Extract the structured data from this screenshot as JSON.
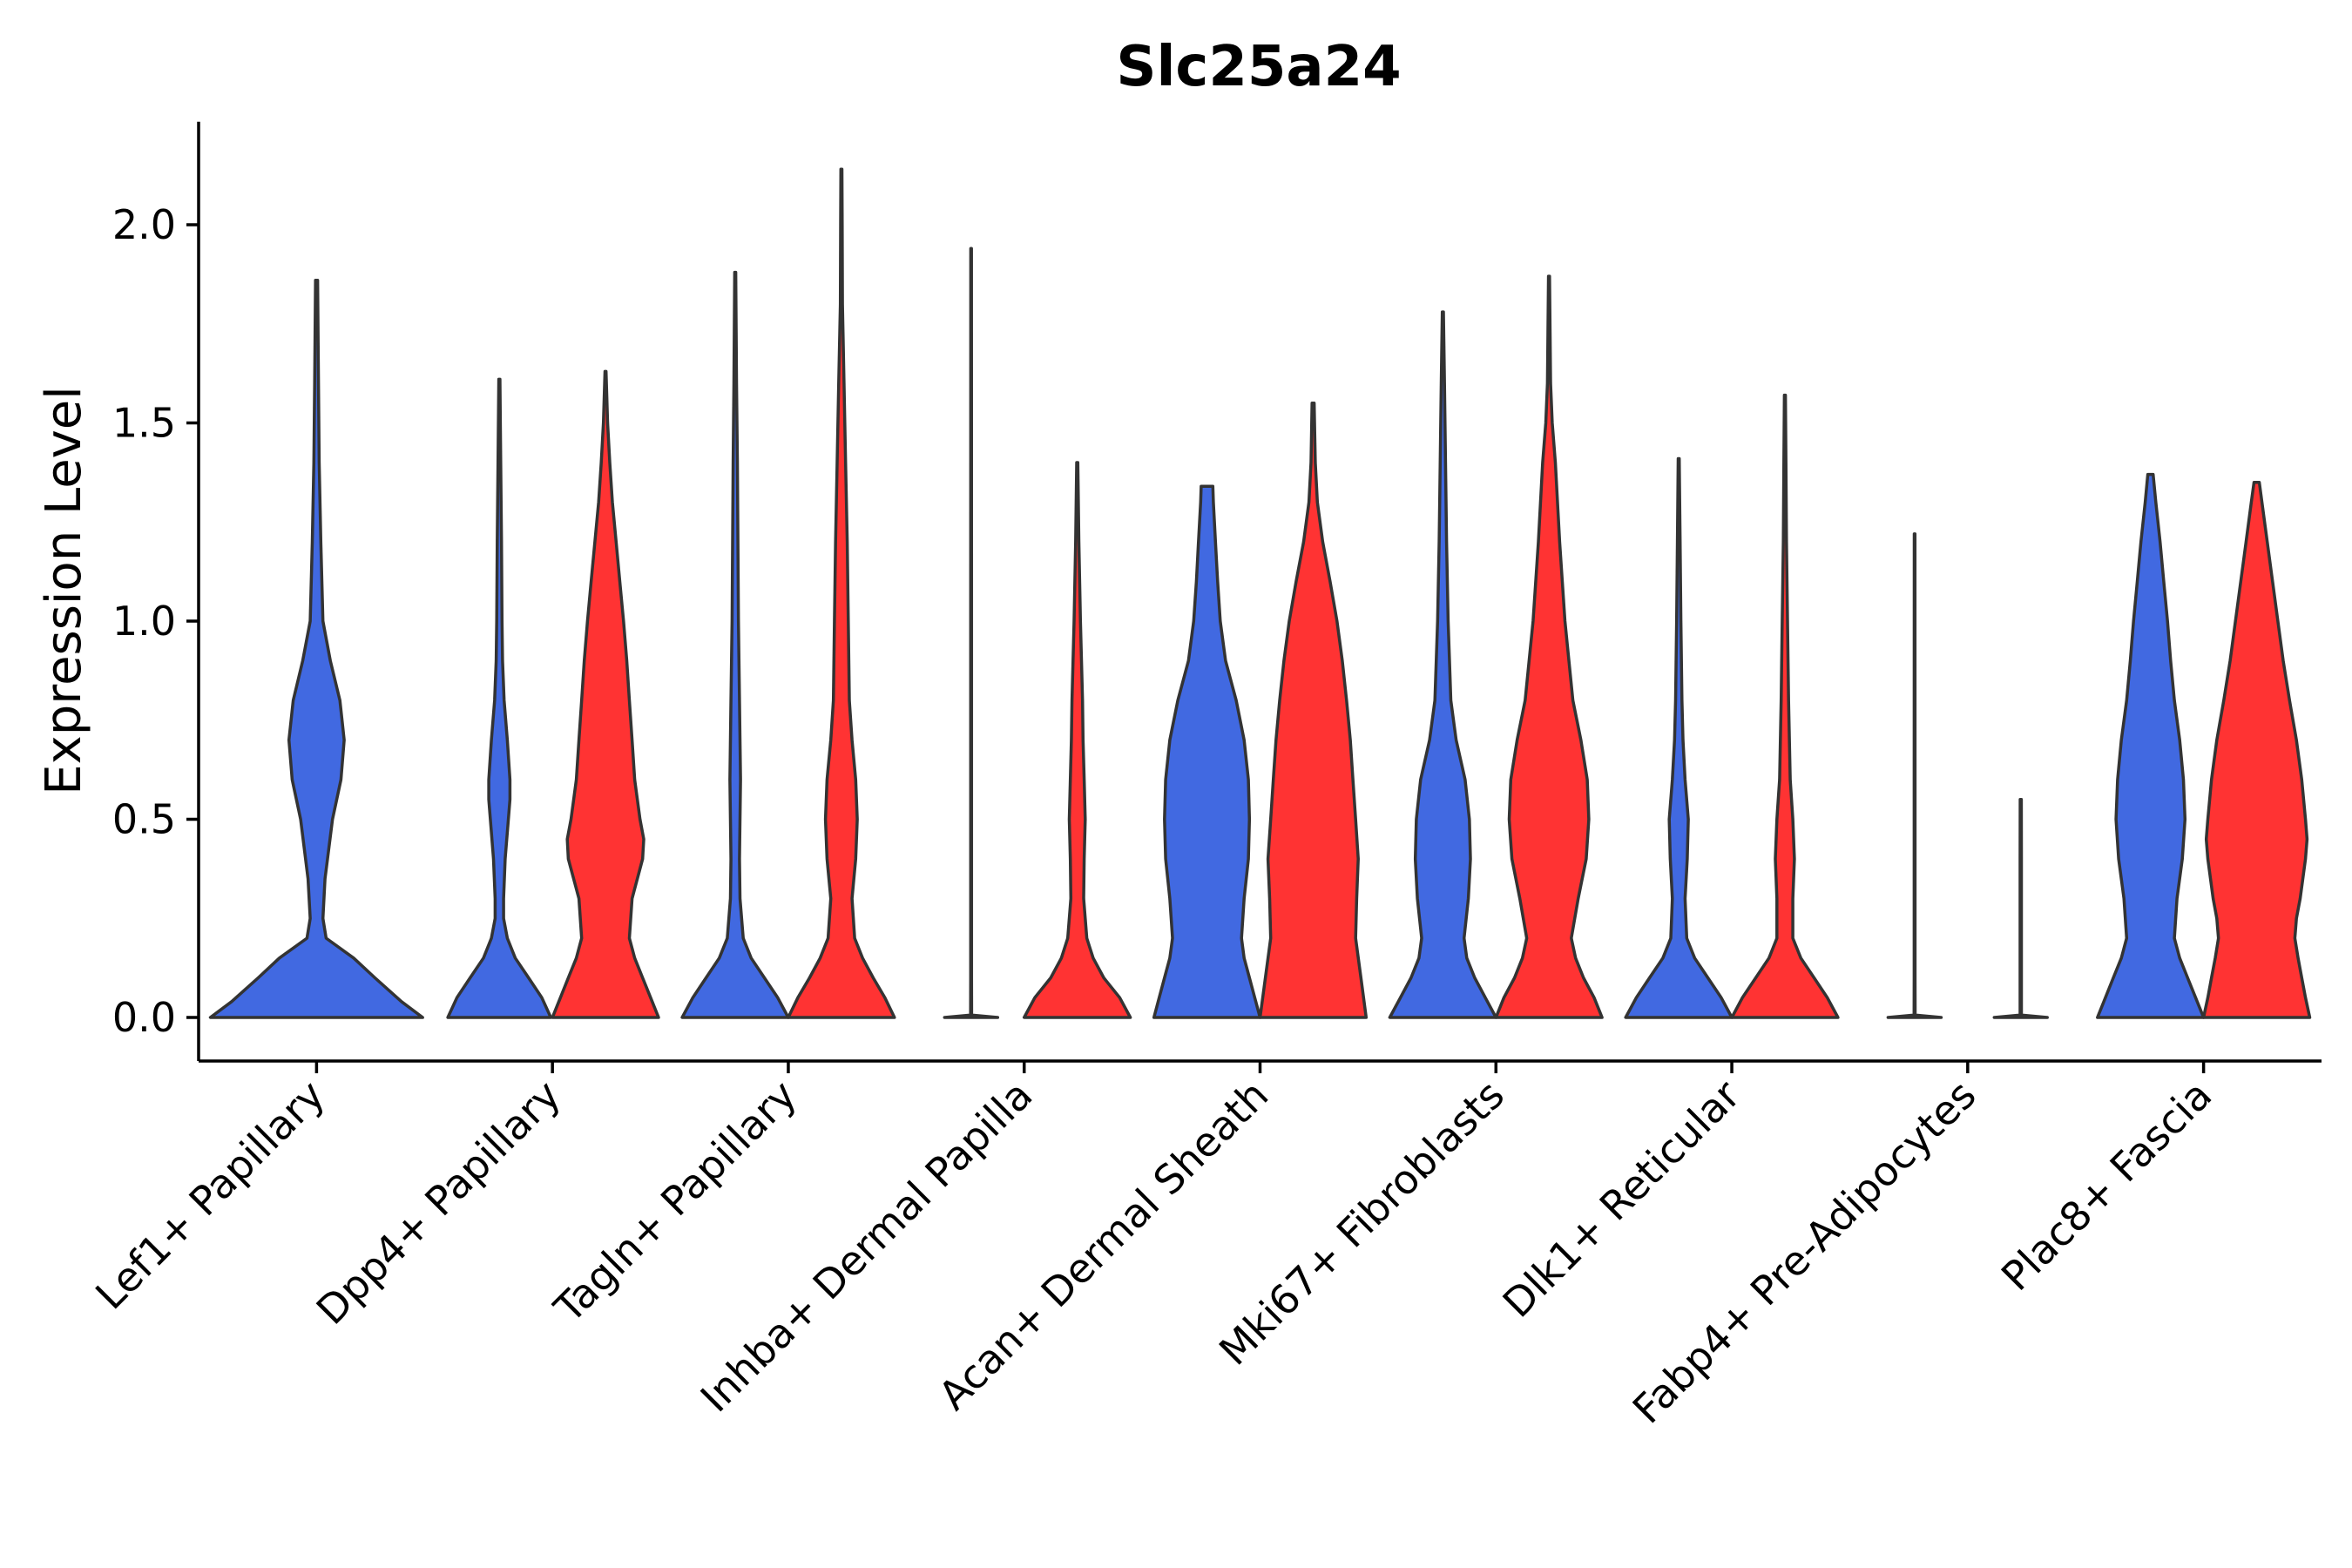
{
  "chart_data": {
    "type": "violin",
    "title": "Slc25a24",
    "xlabel": "",
    "ylabel": "Expression Level",
    "ylim": [
      -0.11,
      2.26
    ],
    "yticks": [
      0.0,
      0.5,
      1.0,
      1.5,
      2.0
    ],
    "ytick_labels": [
      "0.0",
      "0.5",
      "1.0",
      "1.5",
      "2.0"
    ],
    "grid": false,
    "colors": {
      "group1": "#4169E1",
      "group2": "#FF3333",
      "outline": "#333333"
    },
    "series": [
      {
        "name": "group1",
        "color": "#4169E1"
      },
      {
        "name": "group2",
        "color": "#FF3333"
      }
    ],
    "categories": [
      "Lef1+ Papillary",
      "Dpp4+ Papillary",
      "Tagln+ Papillary",
      "Inhba+ Dermal Papilla",
      "Acan+ Dermal Sheath",
      "Mki67+ Fibroblasts",
      "Dlk1+ Reticular",
      "Fabp4+ Pre-Adipocytes",
      "Plac8+ Fascia"
    ],
    "violins": [
      {
        "category": "Lef1+ Papillary",
        "series": "group1",
        "position": "full",
        "max": 1.86,
        "profile": [
          [
            0,
            1.0
          ],
          [
            0.04,
            0.8
          ],
          [
            0.1,
            0.55
          ],
          [
            0.15,
            0.35
          ],
          [
            0.2,
            0.09
          ],
          [
            0.25,
            0.06
          ],
          [
            0.35,
            0.08
          ],
          [
            0.5,
            0.15
          ],
          [
            0.6,
            0.23
          ],
          [
            0.7,
            0.26
          ],
          [
            0.8,
            0.22
          ],
          [
            0.9,
            0.13
          ],
          [
            1.0,
            0.06
          ],
          [
            1.2,
            0.04
          ],
          [
            1.4,
            0.025
          ],
          [
            1.6,
            0.018
          ],
          [
            1.86,
            0.01
          ]
        ]
      },
      {
        "category": "Dpp4+ Papillary",
        "series": "group1",
        "position": "left",
        "max": 1.61,
        "profile": [
          [
            0,
            0.97
          ],
          [
            0.05,
            0.8
          ],
          [
            0.1,
            0.55
          ],
          [
            0.15,
            0.3
          ],
          [
            0.2,
            0.15
          ],
          [
            0.25,
            0.08
          ],
          [
            0.3,
            0.08
          ],
          [
            0.4,
            0.11
          ],
          [
            0.5,
            0.17
          ],
          [
            0.55,
            0.2
          ],
          [
            0.6,
            0.2
          ],
          [
            0.7,
            0.15
          ],
          [
            0.8,
            0.09
          ],
          [
            0.9,
            0.06
          ],
          [
            1.0,
            0.05
          ],
          [
            1.2,
            0.04
          ],
          [
            1.4,
            0.025
          ],
          [
            1.61,
            0.01
          ]
        ]
      },
      {
        "category": "Dpp4+ Papillary",
        "series": "group2",
        "position": "right",
        "max": 1.63,
        "profile": [
          [
            0,
            1.0
          ],
          [
            0.05,
            0.85
          ],
          [
            0.1,
            0.7
          ],
          [
            0.15,
            0.55
          ],
          [
            0.2,
            0.45
          ],
          [
            0.3,
            0.5
          ],
          [
            0.4,
            0.7
          ],
          [
            0.45,
            0.72
          ],
          [
            0.5,
            0.65
          ],
          [
            0.6,
            0.55
          ],
          [
            0.7,
            0.5
          ],
          [
            0.8,
            0.45
          ],
          [
            0.9,
            0.4
          ],
          [
            1.0,
            0.34
          ],
          [
            1.1,
            0.27
          ],
          [
            1.2,
            0.2
          ],
          [
            1.3,
            0.13
          ],
          [
            1.4,
            0.08
          ],
          [
            1.5,
            0.04
          ],
          [
            1.63,
            0.01
          ]
        ]
      },
      {
        "category": "Tagln+ Papillary",
        "series": "group1",
        "position": "left",
        "max": 1.88,
        "profile": [
          [
            0,
            1.0
          ],
          [
            0.05,
            0.8
          ],
          [
            0.1,
            0.55
          ],
          [
            0.15,
            0.3
          ],
          [
            0.2,
            0.15
          ],
          [
            0.3,
            0.09
          ],
          [
            0.4,
            0.08
          ],
          [
            0.5,
            0.09
          ],
          [
            0.6,
            0.1
          ],
          [
            0.7,
            0.09
          ],
          [
            0.8,
            0.08
          ],
          [
            1.0,
            0.06
          ],
          [
            1.2,
            0.05
          ],
          [
            1.4,
            0.04
          ],
          [
            1.6,
            0.025
          ],
          [
            1.88,
            0.01
          ]
        ]
      },
      {
        "category": "Tagln+ Papillary",
        "series": "group2",
        "position": "right",
        "max": 2.14,
        "profile": [
          [
            0,
            1.0
          ],
          [
            0.05,
            0.82
          ],
          [
            0.1,
            0.6
          ],
          [
            0.15,
            0.4
          ],
          [
            0.2,
            0.25
          ],
          [
            0.3,
            0.2
          ],
          [
            0.4,
            0.27
          ],
          [
            0.5,
            0.3
          ],
          [
            0.6,
            0.27
          ],
          [
            0.7,
            0.2
          ],
          [
            0.8,
            0.15
          ],
          [
            1.0,
            0.13
          ],
          [
            1.2,
            0.11
          ],
          [
            1.4,
            0.08
          ],
          [
            1.6,
            0.05
          ],
          [
            1.8,
            0.02
          ],
          [
            2.0,
            0.015
          ],
          [
            2.14,
            0.01
          ]
        ]
      },
      {
        "category": "Inhba+ Dermal Papilla",
        "series": "group1",
        "position": "left",
        "max": 1.94,
        "profile": [
          [
            0,
            0.5
          ],
          [
            0.006,
            0.01
          ],
          [
            0.1,
            0.008
          ],
          [
            1.0,
            0.008
          ],
          [
            1.94,
            0.006
          ]
        ]
      },
      {
        "category": "Inhba+ Dermal Papilla",
        "series": "group2",
        "position": "right",
        "max": 1.4,
        "profile": [
          [
            0,
            1.0
          ],
          [
            0.05,
            0.8
          ],
          [
            0.1,
            0.5
          ],
          [
            0.15,
            0.3
          ],
          [
            0.2,
            0.18
          ],
          [
            0.3,
            0.12
          ],
          [
            0.4,
            0.13
          ],
          [
            0.5,
            0.15
          ],
          [
            0.6,
            0.13
          ],
          [
            0.7,
            0.11
          ],
          [
            0.8,
            0.1
          ],
          [
            0.9,
            0.08
          ],
          [
            1.0,
            0.06
          ],
          [
            1.2,
            0.03
          ],
          [
            1.4,
            0.01
          ]
        ]
      },
      {
        "category": "Acan+ Dermal Sheath",
        "series": "group1",
        "position": "left",
        "max": 1.34,
        "profile": [
          [
            0,
            1.0
          ],
          [
            0.05,
            0.9
          ],
          [
            0.1,
            0.8
          ],
          [
            0.15,
            0.7
          ],
          [
            0.2,
            0.65
          ],
          [
            0.3,
            0.7
          ],
          [
            0.4,
            0.78
          ],
          [
            0.5,
            0.8
          ],
          [
            0.6,
            0.78
          ],
          [
            0.7,
            0.7
          ],
          [
            0.8,
            0.55
          ],
          [
            0.9,
            0.35
          ],
          [
            1.0,
            0.25
          ],
          [
            1.1,
            0.2
          ],
          [
            1.2,
            0.16
          ],
          [
            1.3,
            0.12
          ],
          [
            1.34,
            0.11
          ]
        ]
      },
      {
        "category": "Acan+ Dermal Sheath",
        "series": "group2",
        "position": "right",
        "max": 1.55,
        "profile": [
          [
            0,
            1.0
          ],
          [
            0.1,
            0.9
          ],
          [
            0.2,
            0.8
          ],
          [
            0.3,
            0.82
          ],
          [
            0.4,
            0.85
          ],
          [
            0.5,
            0.8
          ],
          [
            0.6,
            0.75
          ],
          [
            0.7,
            0.7
          ],
          [
            0.8,
            0.63
          ],
          [
            0.9,
            0.55
          ],
          [
            1.0,
            0.45
          ],
          [
            1.1,
            0.32
          ],
          [
            1.2,
            0.18
          ],
          [
            1.3,
            0.08
          ],
          [
            1.4,
            0.04
          ],
          [
            1.55,
            0.02
          ]
        ]
      },
      {
        "category": "Mki67+ Fibroblasts",
        "series": "group1",
        "position": "left",
        "max": 1.78,
        "profile": [
          [
            0,
            1.0
          ],
          [
            0.05,
            0.8
          ],
          [
            0.1,
            0.6
          ],
          [
            0.15,
            0.45
          ],
          [
            0.2,
            0.4
          ],
          [
            0.3,
            0.48
          ],
          [
            0.4,
            0.52
          ],
          [
            0.5,
            0.5
          ],
          [
            0.6,
            0.42
          ],
          [
            0.7,
            0.25
          ],
          [
            0.8,
            0.15
          ],
          [
            1.0,
            0.1
          ],
          [
            1.2,
            0.07
          ],
          [
            1.4,
            0.05
          ],
          [
            1.6,
            0.03
          ],
          [
            1.78,
            0.01
          ]
        ]
      },
      {
        "category": "Mki67+ Fibroblasts",
        "series": "group2",
        "position": "right",
        "max": 1.87,
        "profile": [
          [
            0,
            1.0
          ],
          [
            0.05,
            0.85
          ],
          [
            0.1,
            0.65
          ],
          [
            0.15,
            0.5
          ],
          [
            0.2,
            0.42
          ],
          [
            0.3,
            0.55
          ],
          [
            0.4,
            0.7
          ],
          [
            0.5,
            0.75
          ],
          [
            0.6,
            0.72
          ],
          [
            0.7,
            0.6
          ],
          [
            0.8,
            0.45
          ],
          [
            1.0,
            0.3
          ],
          [
            1.2,
            0.2
          ],
          [
            1.4,
            0.12
          ],
          [
            1.5,
            0.06
          ],
          [
            1.6,
            0.03
          ],
          [
            1.87,
            0.01
          ]
        ]
      },
      {
        "category": "Dlk1+ Reticular",
        "series": "group1",
        "position": "left",
        "max": 1.41,
        "profile": [
          [
            0,
            1.0
          ],
          [
            0.05,
            0.8
          ],
          [
            0.1,
            0.55
          ],
          [
            0.15,
            0.3
          ],
          [
            0.2,
            0.15
          ],
          [
            0.3,
            0.12
          ],
          [
            0.4,
            0.16
          ],
          [
            0.5,
            0.18
          ],
          [
            0.6,
            0.12
          ],
          [
            0.7,
            0.08
          ],
          [
            0.8,
            0.06
          ],
          [
            1.0,
            0.04
          ],
          [
            1.2,
            0.025
          ],
          [
            1.41,
            0.01
          ]
        ]
      },
      {
        "category": "Dlk1+ Reticular",
        "series": "group2",
        "position": "right",
        "max": 1.57,
        "profile": [
          [
            0,
            1.0
          ],
          [
            0.05,
            0.8
          ],
          [
            0.1,
            0.55
          ],
          [
            0.15,
            0.3
          ],
          [
            0.2,
            0.15
          ],
          [
            0.3,
            0.15
          ],
          [
            0.4,
            0.18
          ],
          [
            0.5,
            0.15
          ],
          [
            0.6,
            0.1
          ],
          [
            0.8,
            0.07
          ],
          [
            1.0,
            0.05
          ],
          [
            1.2,
            0.03
          ],
          [
            1.4,
            0.02
          ],
          [
            1.57,
            0.01
          ]
        ]
      },
      {
        "category": "Fabp4+ Pre-Adipocytes",
        "series": "group1",
        "position": "left",
        "max": 1.22,
        "profile": [
          [
            0,
            0.5
          ],
          [
            0.006,
            0.01
          ],
          [
            0.1,
            0.008
          ],
          [
            0.6,
            0.008
          ],
          [
            1.22,
            0.006
          ]
        ]
      },
      {
        "category": "Fabp4+ Pre-Adipocytes",
        "series": "group2",
        "position": "right",
        "max": 0.55,
        "profile": [
          [
            0,
            0.5
          ],
          [
            0.006,
            0.012
          ],
          [
            0.2,
            0.012
          ],
          [
            0.4,
            0.012
          ],
          [
            0.55,
            0.01
          ]
        ]
      },
      {
        "category": "Plac8+ Fascia",
        "series": "group1",
        "position": "left",
        "max": 1.37,
        "profile": [
          [
            0,
            1.0
          ],
          [
            0.05,
            0.85
          ],
          [
            0.1,
            0.7
          ],
          [
            0.15,
            0.55
          ],
          [
            0.2,
            0.45
          ],
          [
            0.3,
            0.5
          ],
          [
            0.4,
            0.6
          ],
          [
            0.5,
            0.65
          ],
          [
            0.6,
            0.62
          ],
          [
            0.7,
            0.55
          ],
          [
            0.8,
            0.45
          ],
          [
            0.9,
            0.38
          ],
          [
            1.0,
            0.32
          ],
          [
            1.1,
            0.25
          ],
          [
            1.2,
            0.18
          ],
          [
            1.3,
            0.1
          ],
          [
            1.37,
            0.05
          ]
        ]
      },
      {
        "category": "Plac8+ Fascia",
        "series": "group2",
        "position": "right",
        "max": 1.35,
        "profile": [
          [
            0,
            1.0
          ],
          [
            0.05,
            0.92
          ],
          [
            0.1,
            0.85
          ],
          [
            0.15,
            0.78
          ],
          [
            0.2,
            0.72
          ],
          [
            0.25,
            0.75
          ],
          [
            0.3,
            0.82
          ],
          [
            0.4,
            0.92
          ],
          [
            0.45,
            0.95
          ],
          [
            0.5,
            0.92
          ],
          [
            0.6,
            0.85
          ],
          [
            0.7,
            0.75
          ],
          [
            0.8,
            0.62
          ],
          [
            0.9,
            0.5
          ],
          [
            1.0,
            0.4
          ],
          [
            1.1,
            0.3
          ],
          [
            1.2,
            0.2
          ],
          [
            1.3,
            0.1
          ],
          [
            1.35,
            0.05
          ]
        ]
      }
    ]
  }
}
